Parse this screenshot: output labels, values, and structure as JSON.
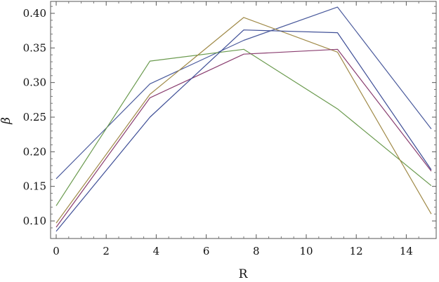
{
  "chart_data": {
    "type": "line",
    "xlabel": "R",
    "ylabel": "β",
    "xlim": [
      0,
      15
    ],
    "ylim": [
      0.08,
      0.42
    ],
    "x_ticks": [
      0,
      2,
      4,
      6,
      8,
      10,
      12,
      14
    ],
    "x_tick_labels": [
      "0",
      "2",
      "4",
      "6",
      "8",
      "10",
      "12",
      "14"
    ],
    "y_ticks": [
      0.1,
      0.15,
      0.2,
      0.25,
      0.3,
      0.35,
      0.4
    ],
    "y_tick_labels": [
      "0.10",
      "0.15",
      "0.20",
      "0.25",
      "0.30",
      "0.35",
      "0.40"
    ],
    "grid": false,
    "x": [
      0,
      3.75,
      7.5,
      11.25,
      15
    ],
    "series": [
      {
        "values": [
          0.161,
          0.298,
          0.361,
          0.409,
          0.233
        ],
        "color": "#4a5a9c"
      },
      {
        "values": [
          0.122,
          0.331,
          0.348,
          0.262,
          0.151
        ],
        "color": "#6a9a4e"
      },
      {
        "values": [
          0.097,
          0.283,
          0.394,
          0.344,
          0.11
        ],
        "color": "#a08a48"
      },
      {
        "values": [
          0.091,
          0.278,
          0.341,
          0.348,
          0.172
        ],
        "color": "#8a3e70"
      },
      {
        "values": [
          0.085,
          0.25,
          0.376,
          0.372,
          0.174
        ],
        "color": "#3e4e96"
      }
    ]
  }
}
